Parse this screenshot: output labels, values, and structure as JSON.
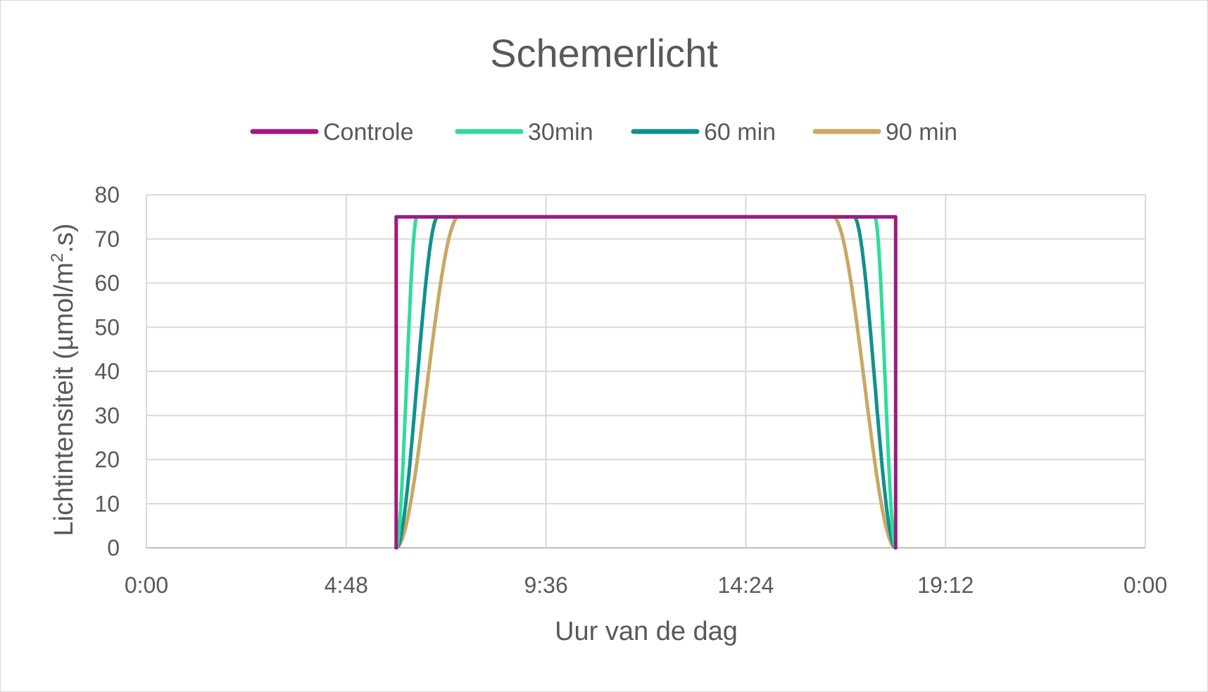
{
  "chart_data": {
    "type": "line",
    "title": "Schemerlicht",
    "xlabel": "Uur van de dag",
    "ylabel_main": "Lichtintensiteit (µmol/m",
    "ylabel_sup": "2",
    "ylabel_end": ".s)",
    "xlim": [
      0,
      24
    ],
    "ylim": [
      0,
      80
    ],
    "x_ticks": [
      {
        "value": 0,
        "label": "0:00"
      },
      {
        "value": 4.8,
        "label": "4:48"
      },
      {
        "value": 9.6,
        "label": "9:36"
      },
      {
        "value": 14.4,
        "label": "14:24"
      },
      {
        "value": 19.2,
        "label": "19:12"
      },
      {
        "value": 24,
        "label": "0:00"
      }
    ],
    "y_ticks": [
      0,
      10,
      20,
      30,
      40,
      50,
      60,
      70,
      80
    ],
    "grid": true,
    "legend_position": "top",
    "series": [
      {
        "name": "Controle",
        "color": "#a0197f",
        "shape": "step",
        "points": [
          [
            6.0,
            0
          ],
          [
            6.0,
            75
          ],
          [
            18.0,
            75
          ],
          [
            18.0,
            0
          ]
        ]
      },
      {
        "name": "30min",
        "color": "#2fdc9c",
        "shape": "smooth",
        "ramp_up": [
          6.0,
          6.5
        ],
        "ramp_down": [
          17.5,
          18.0
        ],
        "plateau": 75
      },
      {
        "name": "60 min",
        "color": "#11918e",
        "shape": "smooth",
        "ramp_up": [
          6.0,
          7.0
        ],
        "ramp_down": [
          17.0,
          18.0
        ],
        "plateau": 75
      },
      {
        "name": "90 min",
        "color": "#c9a764",
        "shape": "smooth",
        "ramp_up": [
          6.0,
          7.5
        ],
        "ramp_down": [
          16.5,
          18.0
        ],
        "plateau": 75
      }
    ]
  }
}
